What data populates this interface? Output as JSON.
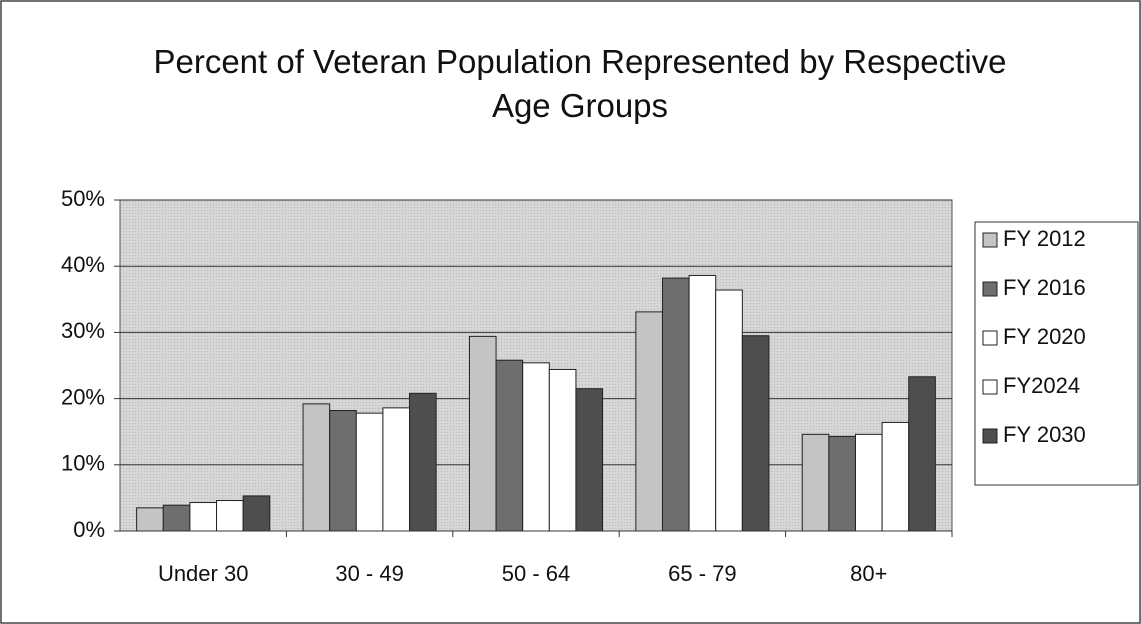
{
  "chart_data": {
    "type": "bar",
    "title": "Percent of Veteran Population Represented by Respective Age Groups",
    "categories": [
      "Under 30",
      "30 - 49",
      "50 - 64",
      "65 - 79",
      "80+"
    ],
    "series": [
      {
        "name": "FY 2012",
        "color": "#c4c4c4",
        "values": [
          3.5,
          19.2,
          29.4,
          33.1,
          14.6
        ]
      },
      {
        "name": "FY 2016",
        "color": "#6e6e6e",
        "values": [
          3.9,
          18.2,
          25.8,
          38.2,
          14.3
        ]
      },
      {
        "name": "FY 2020",
        "color": "#ffffff",
        "values": [
          4.3,
          17.8,
          25.4,
          38.6,
          14.6
        ]
      },
      {
        "name": "FY2024",
        "color": "#ffffff",
        "values": [
          4.6,
          18.6,
          24.4,
          36.4,
          16.4
        ]
      },
      {
        "name": "FY 2030",
        "color": "#4e4e4e",
        "values": [
          5.3,
          20.8,
          21.5,
          29.5,
          23.3
        ]
      }
    ],
    "ylim": [
      0,
      50
    ],
    "yticks": [
      {
        "value": 0,
        "label": "0%"
      },
      {
        "value": 10,
        "label": "10%"
      },
      {
        "value": 20,
        "label": "20%"
      },
      {
        "value": 30,
        "label": "30%"
      },
      {
        "value": 40,
        "label": "40%"
      },
      {
        "value": 50,
        "label": "50%"
      }
    ],
    "grid": true,
    "legend": "right"
  }
}
